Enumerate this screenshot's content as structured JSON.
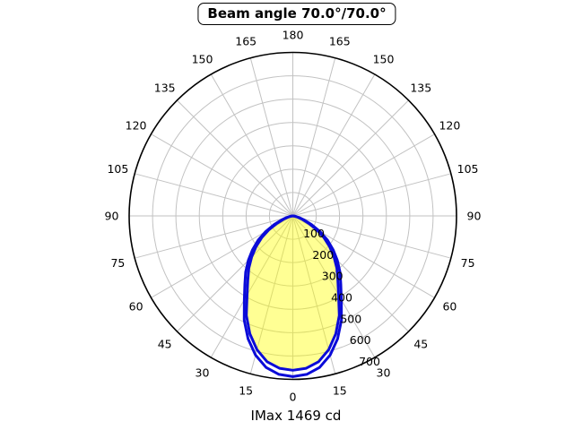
{
  "figure": {
    "title": "Beam angle 70.0°/70.0°",
    "footer": "IMax 1469 cd"
  },
  "chart_data": {
    "type": "polar",
    "title": "Beam angle 70.0°/70.0°",
    "footer_label": "IMax 1469 cd",
    "imax_cd": 1469,
    "beam_angle_plane1": "70.0°",
    "beam_angle_plane2": "70.0°",
    "angle_step_deg": 15,
    "angle_labels": [
      "0",
      "15",
      "30",
      "45",
      "60",
      "75",
      "90",
      "105",
      "120",
      "135",
      "150",
      "165",
      "180"
    ],
    "radial_tick_labels": [
      "100",
      "200",
      "300",
      "400",
      "500",
      "600",
      "700"
    ],
    "radial_ticks": [
      100,
      200,
      300,
      400,
      500,
      600,
      700
    ],
    "r_max": 700,
    "grid_on": true,
    "grid_color": "#c2c2c2",
    "axis_color": "#000000",
    "curve_color": "#0b0bd8",
    "fill_color": "rgba(255,255,0,0.42)",
    "series": [
      {
        "name": "plane-outer",
        "filled": false,
        "angles_deg": [
          0,
          5,
          10,
          15,
          20,
          25,
          30,
          35,
          40,
          45,
          50,
          55,
          60,
          65,
          70,
          75,
          80,
          85,
          90
        ],
        "values": [
          688,
          681,
          659,
          617,
          560,
          492,
          415,
          358,
          314,
          269,
          225,
          181,
          134,
          88,
          52,
          28,
          12,
          4,
          0
        ]
      },
      {
        "name": "plane-inner",
        "filled": true,
        "angles_deg": [
          0,
          5,
          10,
          15,
          20,
          25,
          30,
          35,
          40,
          45,
          50,
          55,
          60,
          65,
          70,
          75,
          80,
          85,
          90
        ],
        "values": [
          661,
          655,
          634,
          593,
          537,
          470,
          391,
          336,
          293,
          249,
          206,
          163,
          118,
          75,
          43,
          22,
          9,
          3,
          0
        ]
      }
    ]
  }
}
